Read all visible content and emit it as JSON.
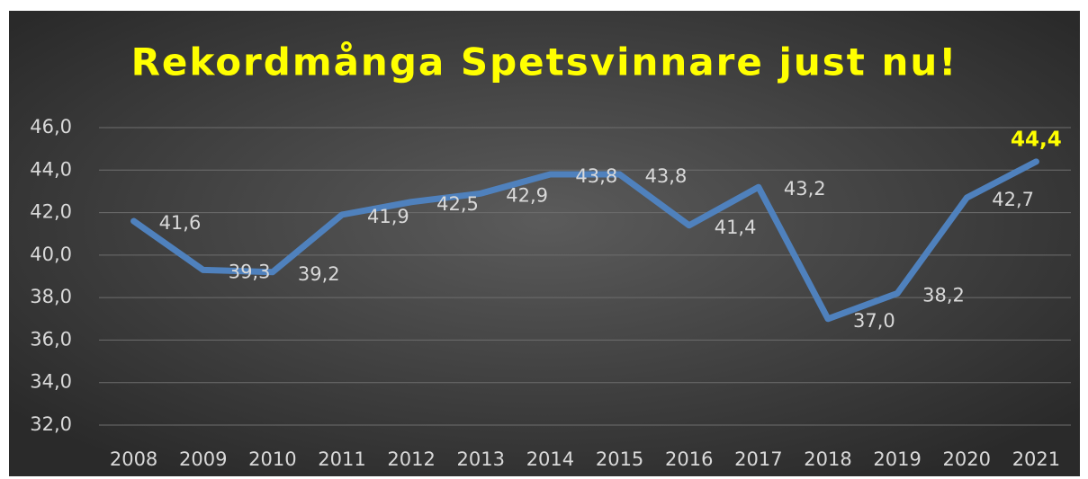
{
  "chart_data": {
    "type": "line",
    "title": "Rekordmånga Spetsvinnare just nu!",
    "categories": [
      "2008",
      "2009",
      "2010",
      "2011",
      "2012",
      "2013",
      "2014",
      "2015",
      "2016",
      "2017",
      "2018",
      "2019",
      "2020",
      "2021"
    ],
    "series": [
      {
        "name": "Spetsvinnare",
        "color": "#4f81bd",
        "values": [
          41.6,
          39.3,
          39.2,
          41.9,
          42.5,
          42.9,
          43.8,
          43.8,
          41.4,
          43.2,
          37.0,
          38.2,
          42.7,
          44.4
        ],
        "value_labels": [
          "41,6",
          "39,3",
          "39,2",
          "41,9",
          "42,5",
          "42,9",
          "43,8",
          "43,8",
          "41,4",
          "43,2",
          "37,0",
          "38,2",
          "42,7",
          "44,4"
        ],
        "value_label_colors": [
          "#d9d9d9",
          "#d9d9d9",
          "#d9d9d9",
          "#d9d9d9",
          "#d9d9d9",
          "#d9d9d9",
          "#d9d9d9",
          "#d9d9d9",
          "#d9d9d9",
          "#d9d9d9",
          "#d9d9d9",
          "#d9d9d9",
          "#d9d9d9",
          "#ffff00"
        ]
      }
    ],
    "ylim": [
      32,
      46
    ],
    "yticks": [
      {
        "value": 32,
        "label": "32,0"
      },
      {
        "value": 34,
        "label": "34,0"
      },
      {
        "value": 36,
        "label": "36,0"
      },
      {
        "value": 38,
        "label": "38,0"
      },
      {
        "value": 40,
        "label": "40,0"
      },
      {
        "value": 42,
        "label": "42,0"
      },
      {
        "value": 44,
        "label": "44,0"
      },
      {
        "value": 46,
        "label": "46,0"
      }
    ],
    "grid": true,
    "title_color": "#ffff00"
  }
}
